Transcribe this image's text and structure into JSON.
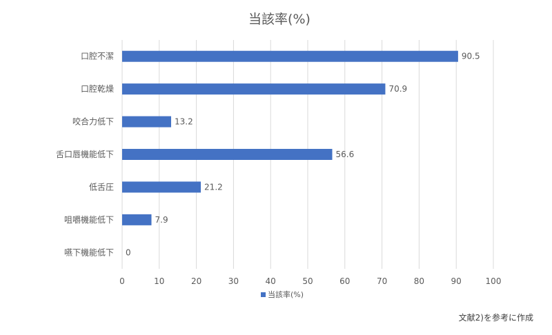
{
  "chart_data": {
    "type": "bar",
    "orientation": "horizontal",
    "title": "当該率(%)",
    "categories": [
      "口腔不潔",
      "口腔乾燥",
      "咬合力低下",
      "舌口唇機能低下",
      "低舌圧",
      "咀嚼機能低下",
      "嚥下機能低下"
    ],
    "series": [
      {
        "name": "当該率(%)",
        "values": [
          90.5,
          70.9,
          13.2,
          56.6,
          21.2,
          7.9,
          0
        ],
        "color": "#4472c4"
      }
    ],
    "xlim": [
      0,
      100
    ],
    "xticks": [
      0,
      10,
      20,
      30,
      40,
      50,
      60,
      70,
      80,
      90,
      100
    ],
    "grid": true,
    "legend_position": "bottom",
    "data_labels": true
  },
  "source_note": "文献2)を参考に作成"
}
